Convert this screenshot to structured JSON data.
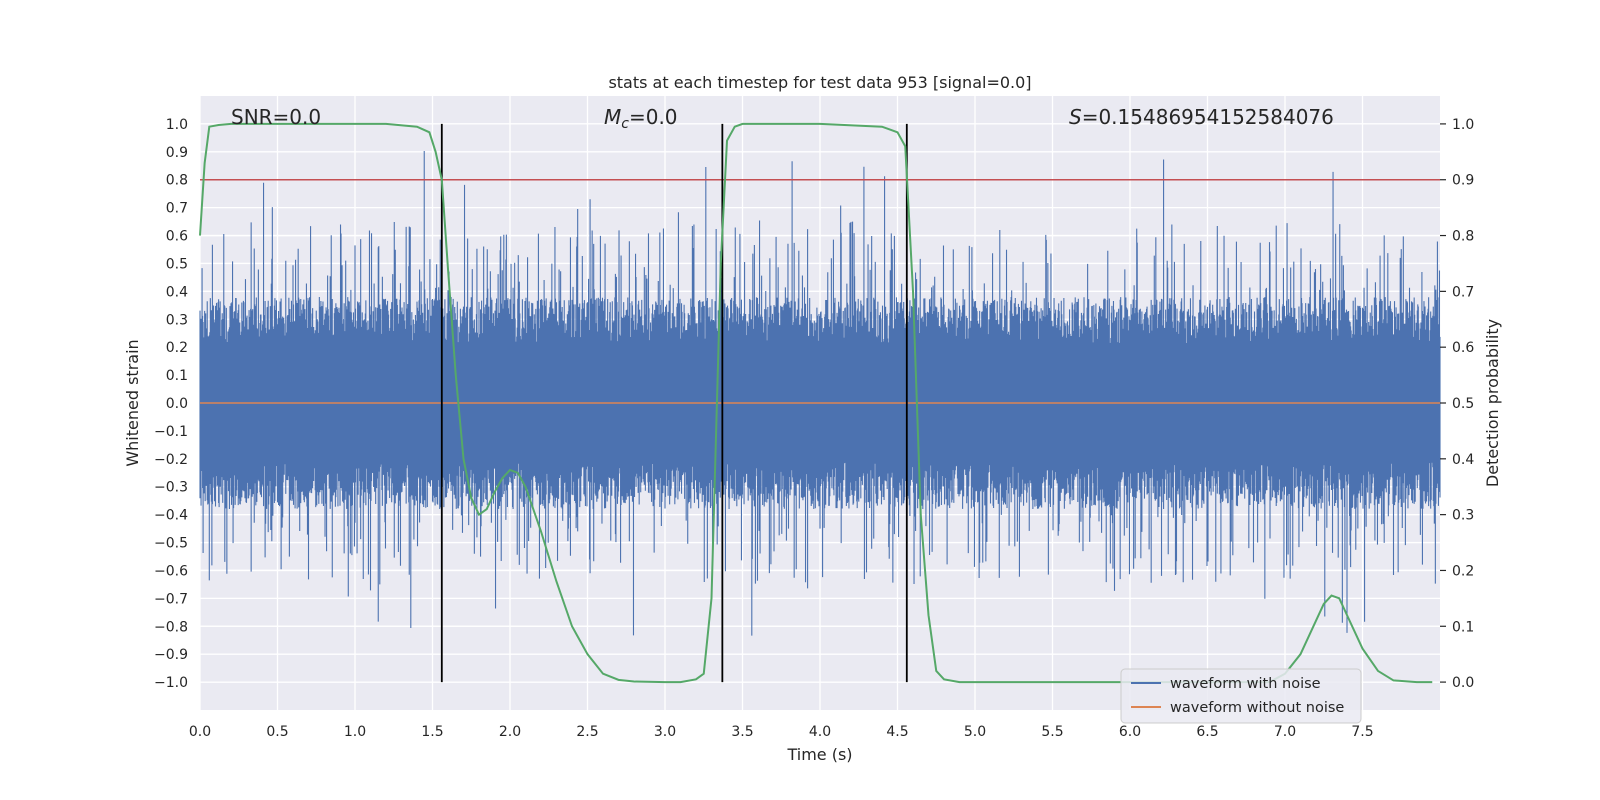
{
  "chart_data": {
    "type": "line",
    "title": "stats at each timestep for test data 953 [signal=0.0]",
    "xlabel": "Time (s)",
    "ylabel_left": "Whitened strain",
    "ylabel_right": "Detection probability",
    "xlim": [
      0.0,
      8.0
    ],
    "ylim_left": [
      -1.1,
      1.1
    ],
    "ylim_right": [
      -0.05,
      1.05
    ],
    "x_ticks": [
      "0.0",
      "0.5",
      "1.0",
      "1.5",
      "2.0",
      "2.5",
      "3.0",
      "3.5",
      "4.0",
      "4.5",
      "5.0",
      "5.5",
      "6.0",
      "6.5",
      "7.0",
      "7.5"
    ],
    "y_ticks_left": [
      "1.0",
      "0.9",
      "0.8",
      "0.7",
      "0.6",
      "0.5",
      "0.4",
      "0.3",
      "0.2",
      "0.1",
      "0.0",
      "−0.1",
      "−0.2",
      "−0.3",
      "−0.4",
      "−0.5",
      "−0.6",
      "−0.7",
      "−0.8",
      "−0.9",
      "−1.0"
    ],
    "y_ticks_right": [
      "1.0",
      "0.9",
      "0.8",
      "0.7",
      "0.6",
      "0.5",
      "0.4",
      "0.3",
      "0.2",
      "0.1",
      "0.0"
    ],
    "grid": true,
    "annotations": {
      "snr": "SNR=0.0",
      "mc_symbol": "M",
      "mc_sub": "c",
      "mc_value": "=0.0",
      "s_symbol": "S",
      "s_value": "=0.15486954152584076"
    },
    "threshold_right": 0.9,
    "vertical_lines_x": [
      1.56,
      3.37,
      4.56
    ],
    "noise": {
      "typical_abs_max": 0.38,
      "spike_max": 0.97,
      "spike_min": -0.84
    },
    "series": [
      {
        "name": "waveform with noise",
        "color": "#4c72b0",
        "axis": "left"
      },
      {
        "name": "waveform without noise",
        "color": "#dd8452",
        "axis": "left",
        "constant": 0.0
      },
      {
        "name": "",
        "color": "#55a868",
        "axis": "right",
        "x": [
          0.0,
          0.03,
          0.06,
          0.12,
          0.2,
          0.4,
          0.8,
          1.2,
          1.4,
          1.48,
          1.52,
          1.56,
          1.6,
          1.65,
          1.7,
          1.75,
          1.8,
          1.85,
          1.9,
          1.95,
          2.0,
          2.05,
          2.1,
          2.15,
          2.2,
          2.3,
          2.4,
          2.5,
          2.6,
          2.7,
          2.8,
          3.0,
          3.1,
          3.2,
          3.25,
          3.3,
          3.33,
          3.36,
          3.4,
          3.45,
          3.5,
          3.6,
          4.0,
          4.4,
          4.5,
          4.55,
          4.6,
          4.65,
          4.7,
          4.75,
          4.8,
          4.9,
          5.0,
          5.5,
          6.0,
          6.5,
          6.9,
          7.0,
          7.1,
          7.2,
          7.25,
          7.3,
          7.35,
          7.4,
          7.5,
          7.6,
          7.7,
          7.85,
          7.95
        ],
        "y": [
          0.8,
          0.93,
          0.995,
          0.998,
          1.0,
          1.0,
          1.0,
          1.0,
          0.995,
          0.985,
          0.95,
          0.9,
          0.74,
          0.55,
          0.4,
          0.33,
          0.3,
          0.31,
          0.34,
          0.365,
          0.38,
          0.375,
          0.35,
          0.31,
          0.27,
          0.18,
          0.1,
          0.05,
          0.015,
          0.004,
          0.001,
          0.0,
          0.0,
          0.005,
          0.015,
          0.15,
          0.45,
          0.75,
          0.97,
          0.995,
          1.0,
          1.0,
          1.0,
          0.995,
          0.985,
          0.96,
          0.7,
          0.3,
          0.12,
          0.02,
          0.005,
          0.0,
          0.0,
          0.0,
          0.0,
          0.0,
          0.0,
          0.015,
          0.05,
          0.11,
          0.14,
          0.155,
          0.15,
          0.12,
          0.06,
          0.02,
          0.003,
          0.0,
          0.0
        ]
      }
    ],
    "legend": {
      "placement": "lower-right",
      "entries": [
        "waveform with noise",
        "waveform without noise"
      ]
    },
    "colors": {
      "plot_bg": "#eaeaf2",
      "grid": "#ffffff",
      "threshold": "#c44e52",
      "vline": "#000000",
      "text": "#262626"
    }
  }
}
